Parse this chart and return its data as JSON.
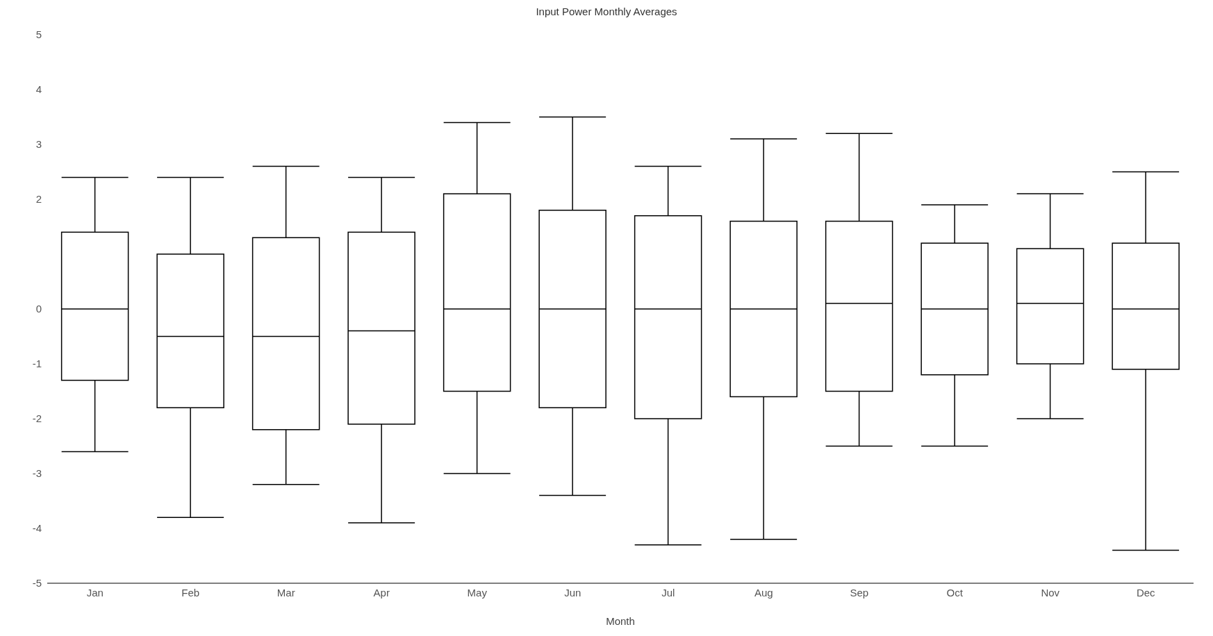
{
  "chart_data": {
    "type": "box",
    "title": "Input Power Monthly Averages",
    "xlabel": "Month",
    "categories": [
      "Jan",
      "Feb",
      "Mar",
      "Apr",
      "May",
      "Jun",
      "Jul",
      "Aug",
      "Sep",
      "Oct",
      "Nov",
      "Dec"
    ],
    "color": "#000000",
    "boxes": [
      {
        "low": -2.6,
        "q1": -1.3,
        "median": 0,
        "q3": 1.4,
        "high": 2.4
      },
      {
        "low": -3.8,
        "q1": -1.8,
        "median": -0.5,
        "q3": 1.0,
        "high": 2.4
      },
      {
        "low": -3.2,
        "q1": -2.2,
        "median": -0.5,
        "q3": 1.3,
        "high": 2.6
      },
      {
        "low": -3.9,
        "q1": -2.1,
        "median": -0.4,
        "q3": 1.4,
        "high": 2.4
      },
      {
        "low": -3.0,
        "q1": -1.5,
        "median": 0,
        "q3": 2.1,
        "high": 3.4
      },
      {
        "low": -3.4,
        "q1": -1.8,
        "median": 0,
        "q3": 1.8,
        "high": 3.5
      },
      {
        "low": -4.3,
        "q1": -2.0,
        "median": 0,
        "q3": 1.7,
        "high": 2.6
      },
      {
        "low": -4.2,
        "q1": -1.6,
        "median": 0,
        "q3": 1.6,
        "high": 3.1
      },
      {
        "low": -2.5,
        "q1": -1.5,
        "median": 0.1,
        "q3": 1.6,
        "high": 3.2
      },
      {
        "low": -2.5,
        "q1": -1.2,
        "median": 0,
        "q3": 1.2,
        "high": 1.9
      },
      {
        "low": -2.0,
        "q1": -1.0,
        "median": 0.1,
        "q3": 1.1,
        "high": 2.1
      },
      {
        "low": -4.4,
        "q1": -1.1,
        "median": 0,
        "q3": 1.2,
        "high": 2.5
      }
    ],
    "ylim": [
      -5,
      5
    ],
    "yticks": [
      -5,
      -4,
      -3,
      -2,
      -1,
      0,
      2,
      3,
      4,
      5
    ],
    "grid": false,
    "legend": false
  }
}
